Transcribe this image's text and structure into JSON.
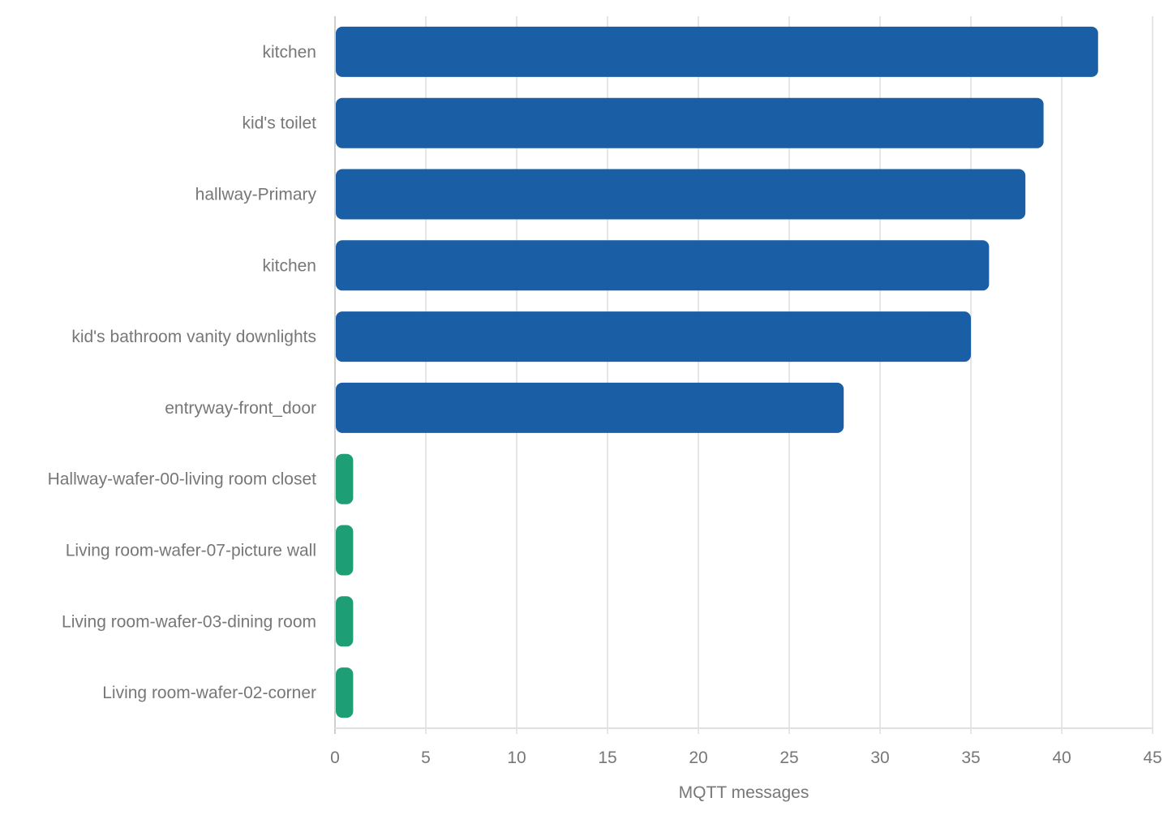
{
  "chart_data": {
    "type": "bar",
    "orientation": "horizontal",
    "title": "",
    "xlabel": "MQTT messages",
    "ylabel": "",
    "xlim": [
      0,
      45
    ],
    "xticks": [
      0,
      5,
      10,
      15,
      20,
      25,
      30,
      35,
      40,
      45
    ],
    "grid": true,
    "categories": [
      "kitchen",
      "kid's toilet",
      "hallway-Primary",
      "kitchen",
      "kid's bathroom vanity downlights",
      "entryway-front_door",
      "Hallway-wafer-00-living room closet",
      "Living room-wafer-07-picture wall",
      "Living room-wafer-03-dining room",
      "Living room-wafer-02-corner"
    ],
    "values": [
      42,
      39,
      38,
      36,
      35,
      28,
      1,
      1,
      1,
      1
    ],
    "bar_colors": [
      "#1a5fa6",
      "#1a5fa6",
      "#1a5fa6",
      "#1a5fa6",
      "#1a5fa6",
      "#1a5fa6",
      "#1e9e74",
      "#1e9e74",
      "#1e9e74",
      "#1e9e74"
    ]
  }
}
